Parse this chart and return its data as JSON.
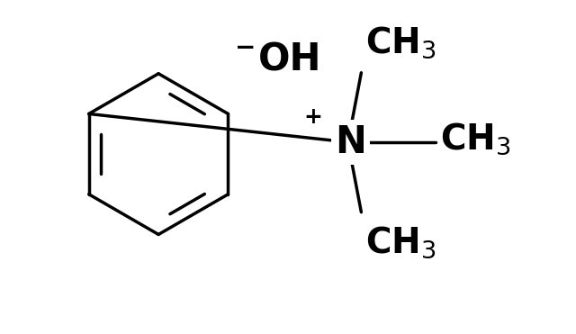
{
  "background_color": "#ffffff",
  "line_color": "#000000",
  "line_width": 2.5,
  "figsize": [
    6.4,
    3.71
  ],
  "dpi": 100,
  "font_size_atoms": 28,
  "font_size_sub": 18,
  "font_size_charge": 18
}
